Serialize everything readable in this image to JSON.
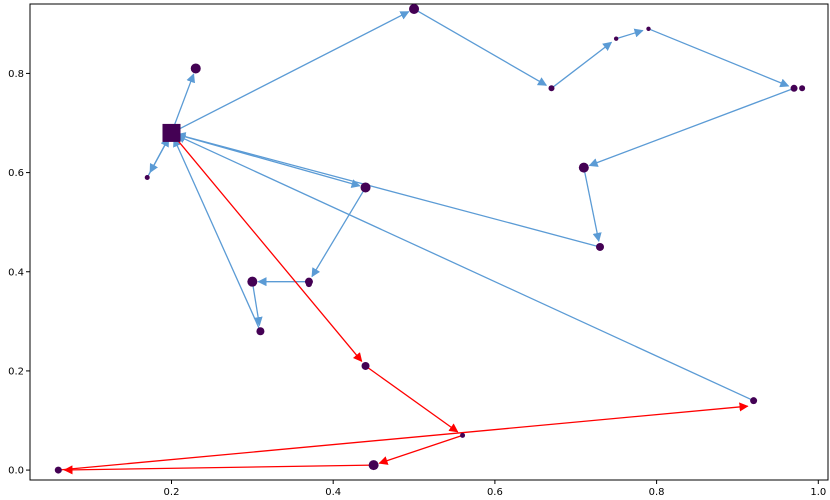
{
  "chart_data": {
    "type": "scatter",
    "title": "",
    "xlabel": "",
    "ylabel": "",
    "xlim": [
      0.025,
      1.012
    ],
    "ylim": [
      -0.02,
      0.94
    ],
    "x_ticks": [
      0.2,
      0.4,
      0.6,
      0.8,
      1.0
    ],
    "y_ticks": [
      0.0,
      0.2,
      0.4,
      0.6,
      0.8
    ],
    "x_tick_labels": [
      "0.2",
      "0.4",
      "0.6",
      "0.8",
      "1.0"
    ],
    "y_tick_labels": [
      "0.0",
      "0.2",
      "0.4",
      "0.6",
      "0.8"
    ],
    "grid": false,
    "legend": "none",
    "depot": {
      "x": 0.2,
      "y": 0.68,
      "marker": "square"
    },
    "points": [
      {
        "x": 0.23,
        "y": 0.81,
        "size": 5
      },
      {
        "x": 0.17,
        "y": 0.59,
        "size": 2.5
      },
      {
        "x": 0.5,
        "y": 0.93,
        "size": 5
      },
      {
        "x": 0.67,
        "y": 0.77,
        "size": 3
      },
      {
        "x": 0.75,
        "y": 0.87,
        "size": 2.2
      },
      {
        "x": 0.79,
        "y": 0.89,
        "size": 2.2
      },
      {
        "x": 0.97,
        "y": 0.77,
        "size": 3.5
      },
      {
        "x": 0.98,
        "y": 0.77,
        "size": 3
      },
      {
        "x": 0.71,
        "y": 0.61,
        "size": 5
      },
      {
        "x": 0.73,
        "y": 0.45,
        "size": 4
      },
      {
        "x": 0.44,
        "y": 0.57,
        "size": 5
      },
      {
        "x": 0.37,
        "y": 0.38,
        "size": 4
      },
      {
        "x": 0.37,
        "y": 0.375,
        "size": 3
      },
      {
        "x": 0.3,
        "y": 0.38,
        "size": 5
      },
      {
        "x": 0.31,
        "y": 0.28,
        "size": 4
      },
      {
        "x": 0.92,
        "y": 0.14,
        "size": 3.5
      },
      {
        "x": 0.44,
        "y": 0.21,
        "size": 4
      },
      {
        "x": 0.56,
        "y": 0.07,
        "size": 2.5
      },
      {
        "x": 0.45,
        "y": 0.01,
        "size": 5
      },
      {
        "x": 0.06,
        "y": 0.0,
        "size": 3.5
      }
    ],
    "routes": [
      {
        "color": "#5b9bd5",
        "edges": [
          [
            [
              0.2,
              0.68
            ],
            [
              0.23,
              0.81
            ]
          ],
          [
            [
              0.2,
              0.68
            ],
            [
              0.17,
              0.59
            ]
          ],
          [
            [
              0.17,
              0.59
            ],
            [
              0.2,
              0.68
            ]
          ],
          [
            [
              0.2,
              0.68
            ],
            [
              0.5,
              0.93
            ]
          ],
          [
            [
              0.5,
              0.93
            ],
            [
              0.67,
              0.77
            ]
          ],
          [
            [
              0.67,
              0.77
            ],
            [
              0.75,
              0.87
            ]
          ],
          [
            [
              0.75,
              0.87
            ],
            [
              0.79,
              0.89
            ]
          ],
          [
            [
              0.79,
              0.89
            ],
            [
              0.97,
              0.77
            ]
          ],
          [
            [
              0.97,
              0.77
            ],
            [
              0.71,
              0.61
            ]
          ],
          [
            [
              0.71,
              0.61
            ],
            [
              0.73,
              0.45
            ]
          ],
          [
            [
              0.73,
              0.45
            ],
            [
              0.2,
              0.68
            ]
          ],
          [
            [
              0.2,
              0.68
            ],
            [
              0.44,
              0.57
            ]
          ],
          [
            [
              0.44,
              0.57
            ],
            [
              0.37,
              0.38
            ]
          ],
          [
            [
              0.37,
              0.38
            ],
            [
              0.3,
              0.38
            ]
          ],
          [
            [
              0.3,
              0.38
            ],
            [
              0.31,
              0.28
            ]
          ],
          [
            [
              0.31,
              0.28
            ],
            [
              0.2,
              0.68
            ]
          ],
          [
            [
              0.92,
              0.14
            ],
            [
              0.2,
              0.68
            ]
          ]
        ]
      },
      {
        "color": "#ff0000",
        "edges": [
          [
            [
              0.2,
              0.68
            ],
            [
              0.44,
              0.21
            ]
          ],
          [
            [
              0.44,
              0.21
            ],
            [
              0.56,
              0.07
            ]
          ],
          [
            [
              0.56,
              0.07
            ],
            [
              0.45,
              0.01
            ]
          ],
          [
            [
              0.45,
              0.01
            ],
            [
              0.06,
              0.0
            ]
          ],
          [
            [
              0.06,
              0.0
            ],
            [
              0.92,
              0.13
            ]
          ]
        ]
      }
    ],
    "marker_color": "#440154"
  }
}
